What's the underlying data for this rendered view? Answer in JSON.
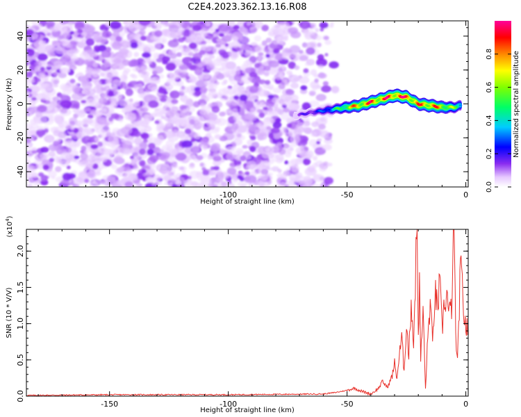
{
  "figure": {
    "title": "C2E4.2023.362.13.16.R08"
  },
  "chart_data": [
    {
      "type": "heatmap",
      "name": "spectrogram",
      "xlabel": "Height of straight line (km)",
      "ylabel": "Frequency (Hz)",
      "xlim": [
        -185,
        1
      ],
      "ylim": [
        -49,
        49
      ],
      "xticks": [
        -150,
        -100,
        -50,
        0
      ],
      "yticks": [
        -40,
        -20,
        0,
        20,
        40
      ],
      "colorbar": {
        "label": "Normalized spectral amplitude",
        "range": [
          0,
          1
        ],
        "ticks": [
          0.0,
          0.2,
          0.4,
          0.6,
          0.8
        ]
      },
      "signal_ridge": {
        "x": [
          -72,
          -65,
          -60,
          -55,
          -50,
          -45,
          -40,
          -35,
          -30,
          -25,
          -20,
          -15,
          -10,
          -5,
          -2
        ],
        "y": [
          -7,
          -5,
          -4,
          -3,
          -2,
          -1,
          1,
          3,
          5,
          4,
          0,
          -1,
          -2,
          -2,
          -1
        ],
        "amplitude": [
          0.15,
          0.2,
          0.3,
          0.45,
          0.7,
          0.85,
          0.9,
          0.9,
          0.95,
          0.95,
          0.85,
          0.9,
          0.8,
          0.6,
          0.5
        ]
      },
      "noise": {
        "x_range": [
          -185,
          -55
        ],
        "y_range": [
          -49,
          49
        ],
        "amplitude_range": [
          0.0,
          0.15
        ]
      }
    },
    {
      "type": "line",
      "name": "snr",
      "xlabel": "Height of straight line (km)",
      "ylabel": "SNR (10 * V/V)",
      "y_multiplier": "(x10",
      "y_multiplier_exp": "4",
      "y_multiplier_close": ")",
      "xlim": [
        -185,
        1
      ],
      "ylim": [
        0,
        2.3
      ],
      "xticks": [
        -150,
        -100,
        -50,
        0
      ],
      "yticks": [
        0.0,
        0.5,
        1.0,
        1.5,
        2.0
      ],
      "series": [
        {
          "color": "#e8302a",
          "x": [
            -185,
            -150,
            -100,
            -60,
            -55,
            -50,
            -47,
            -44,
            -40,
            -37,
            -35,
            -33,
            -31,
            -30,
            -29,
            -28,
            -27,
            -26,
            -25,
            -24,
            -23,
            -22,
            -21,
            -20.5,
            -20,
            -19.5,
            -19,
            -18,
            -17,
            -16,
            -15,
            -14,
            -13,
            -12,
            -11,
            -10,
            -9,
            -8,
            -7,
            -6,
            -5,
            -4,
            -3.5,
            -3,
            -2.5,
            -2,
            -1.5,
            -1,
            0,
            1
          ],
          "y": [
            0.01,
            0.02,
            0.02,
            0.03,
            0.05,
            0.08,
            0.11,
            0.07,
            0.03,
            0.1,
            0.2,
            0.12,
            0.28,
            0.45,
            0.25,
            0.55,
            0.8,
            0.35,
            1.0,
            0.55,
            1.35,
            0.7,
            1.9,
            2.3,
            0.9,
            1.5,
            0.5,
            1.2,
            0.1,
            0.8,
            1.3,
            0.7,
            1.45,
            1.2,
            1.55,
            0.9,
            1.3,
            1.4,
            1.1,
            1.25,
            2.25,
            0.6,
            0.45,
            1.0,
            1.55,
            1.7,
            1.5,
            1.2,
            0.95,
            0.9
          ]
        }
      ]
    }
  ]
}
